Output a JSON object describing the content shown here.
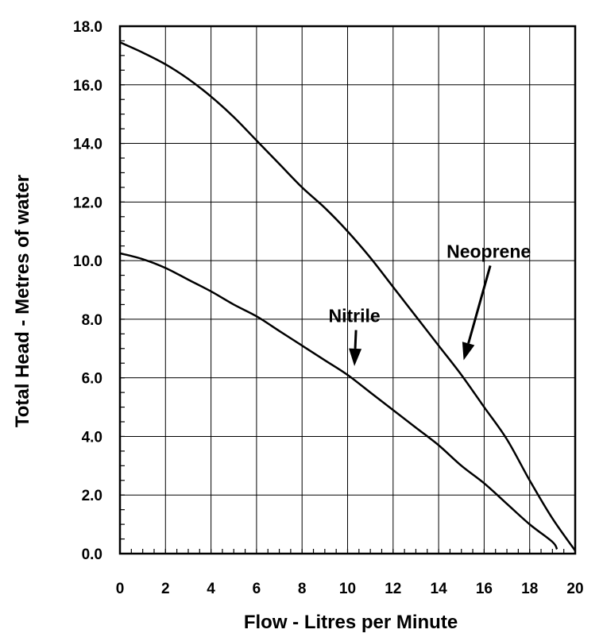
{
  "chart_data": {
    "type": "line",
    "title": "",
    "xlabel": "Flow - Litres per Minute",
    "ylabel": "Total Head - Metres of water",
    "xlim": [
      0,
      20
    ],
    "ylim": [
      0,
      18
    ],
    "x_ticks": [
      0,
      2,
      4,
      6,
      8,
      10,
      12,
      14,
      16,
      18,
      20
    ],
    "x_tick_labels": [
      "0",
      "2",
      "4",
      "6",
      "8",
      "10",
      "12",
      "14",
      "16",
      "18",
      "20"
    ],
    "y_ticks": [
      0,
      2,
      4,
      6,
      8,
      10,
      12,
      14,
      16,
      18
    ],
    "y_tick_labels": [
      "0.0",
      "2.0",
      "4.0",
      "6.0",
      "8.0",
      "10.0",
      "12.0",
      "14.0",
      "16.0",
      "18.0"
    ],
    "grid": true,
    "series": [
      {
        "name": "Neoprene",
        "x": [
          0,
          1,
          2,
          3,
          4,
          5,
          6,
          7,
          8,
          9,
          10,
          11,
          12,
          13,
          14,
          15,
          16,
          17,
          18,
          19,
          20
        ],
        "y": [
          17.45,
          17.1,
          16.7,
          16.2,
          15.6,
          14.9,
          14.1,
          13.3,
          12.5,
          11.8,
          11.0,
          10.1,
          9.1,
          8.1,
          7.1,
          6.1,
          5.0,
          3.9,
          2.5,
          1.2,
          0.1
        ]
      },
      {
        "name": "Nitrile",
        "x": [
          0,
          1,
          2,
          3,
          4,
          5,
          6,
          7,
          8,
          9,
          10,
          11,
          12,
          13,
          14,
          15,
          16,
          17,
          18,
          19,
          19.2
        ],
        "y": [
          10.25,
          10.05,
          9.75,
          9.35,
          8.95,
          8.5,
          8.1,
          7.6,
          7.1,
          6.6,
          6.1,
          5.5,
          4.9,
          4.3,
          3.7,
          3.0,
          2.4,
          1.7,
          1.0,
          0.4,
          0.15
        ]
      }
    ],
    "annotations": [
      {
        "text": "Neoprene",
        "x": 16.2,
        "y": 10.1,
        "arrow_to": [
          15.1,
          6.6
        ]
      },
      {
        "text": "Nitrile",
        "x": 10.3,
        "y": 7.9,
        "arrow_to": [
          10.3,
          6.4
        ]
      }
    ]
  }
}
